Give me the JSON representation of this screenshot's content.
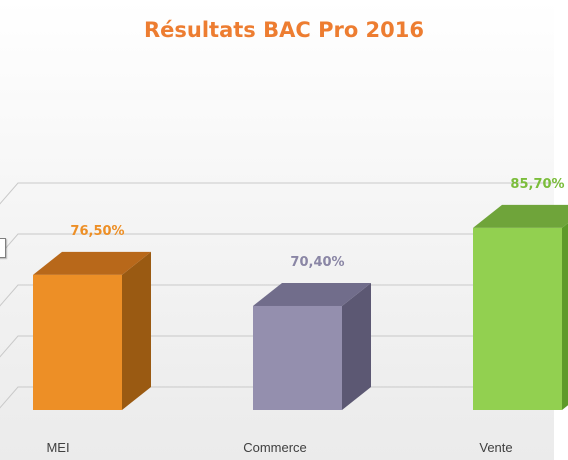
{
  "chart_data": {
    "type": "bar",
    "title": "Résultats BAC Pro 2016",
    "categories": [
      "MEI",
      "Commerce",
      "Vente"
    ],
    "values": [
      76.5,
      70.4,
      85.7
    ],
    "value_labels": [
      "76,50%",
      "70,40%",
      "85,70%"
    ],
    "xlabel": "",
    "ylabel": "",
    "ylim": [
      50,
      90
    ],
    "grid": true,
    "legend": "none",
    "colors": {
      "title": "#ed7d31",
      "bars": [
        {
          "front": "#ed8f26",
          "side": "#9a5a12",
          "top": "#b8681a",
          "label": "#ed8f26"
        },
        {
          "front": "#948fae",
          "side": "#5c5873",
          "top": "#716d8b",
          "label": "#8a86a5"
        },
        {
          "front": "#92d050",
          "side": "#5e9a2a",
          "top": "#6fa43a",
          "label": "#7bbd3b"
        }
      ],
      "axis_text": "#404040",
      "grid": "#c9c9c9"
    }
  }
}
